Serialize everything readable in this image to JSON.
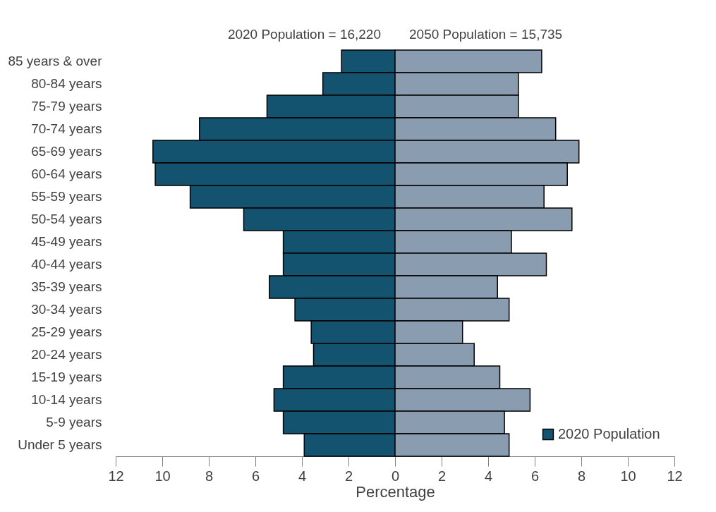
{
  "chart_data": {
    "type": "bar",
    "orientation": "horizontal",
    "stacked": true,
    "categories": [
      "85 years & over",
      "80-84 years",
      "75-79 years",
      "70-74 years",
      "65-69 years",
      "60-64 years",
      "55-59 years",
      "50-54 years",
      "45-49 years",
      "40-44 years",
      "35-39 years",
      "30-34 years",
      "25-29 years",
      "20-24 years",
      "15-19 years",
      "10-14 years",
      "5-9 years",
      "Under 5 years"
    ],
    "series": [
      {
        "name": "2020 Population",
        "color": "#14536f",
        "values": [
          -2.3,
          -3.1,
          -5.5,
          -8.4,
          -10.4,
          -10.3,
          -8.8,
          -6.5,
          -4.8,
          -4.8,
          -5.4,
          -4.3,
          -3.6,
          -3.5,
          -4.8,
          -5.2,
          -4.8,
          -3.9
        ]
      },
      {
        "color": "#8a9caf",
        "values": [
          6.3,
          5.3,
          5.3,
          6.9,
          7.9,
          7.4,
          6.4,
          7.6,
          5.0,
          6.5,
          4.4,
          4.9,
          2.9,
          3.4,
          4.5,
          5.8,
          4.7,
          4.9
        ]
      }
    ],
    "xlabel": "Percentage",
    "xlim": [
      -12,
      12
    ],
    "xticks": [
      {
        "value": -12,
        "label": "12"
      },
      {
        "value": -10,
        "label": "10"
      },
      {
        "value": -8,
        "label": "8"
      },
      {
        "value": -6,
        "label": "6"
      },
      {
        "value": -4,
        "label": "4"
      },
      {
        "value": -2,
        "label": "2"
      },
      0,
      2,
      4,
      6,
      8,
      10,
      12
    ],
    "annotations": [
      "2020 Population = 16,220",
      "2050 Population = 15,735"
    ],
    "legend": "bottom right",
    "grid": false
  }
}
